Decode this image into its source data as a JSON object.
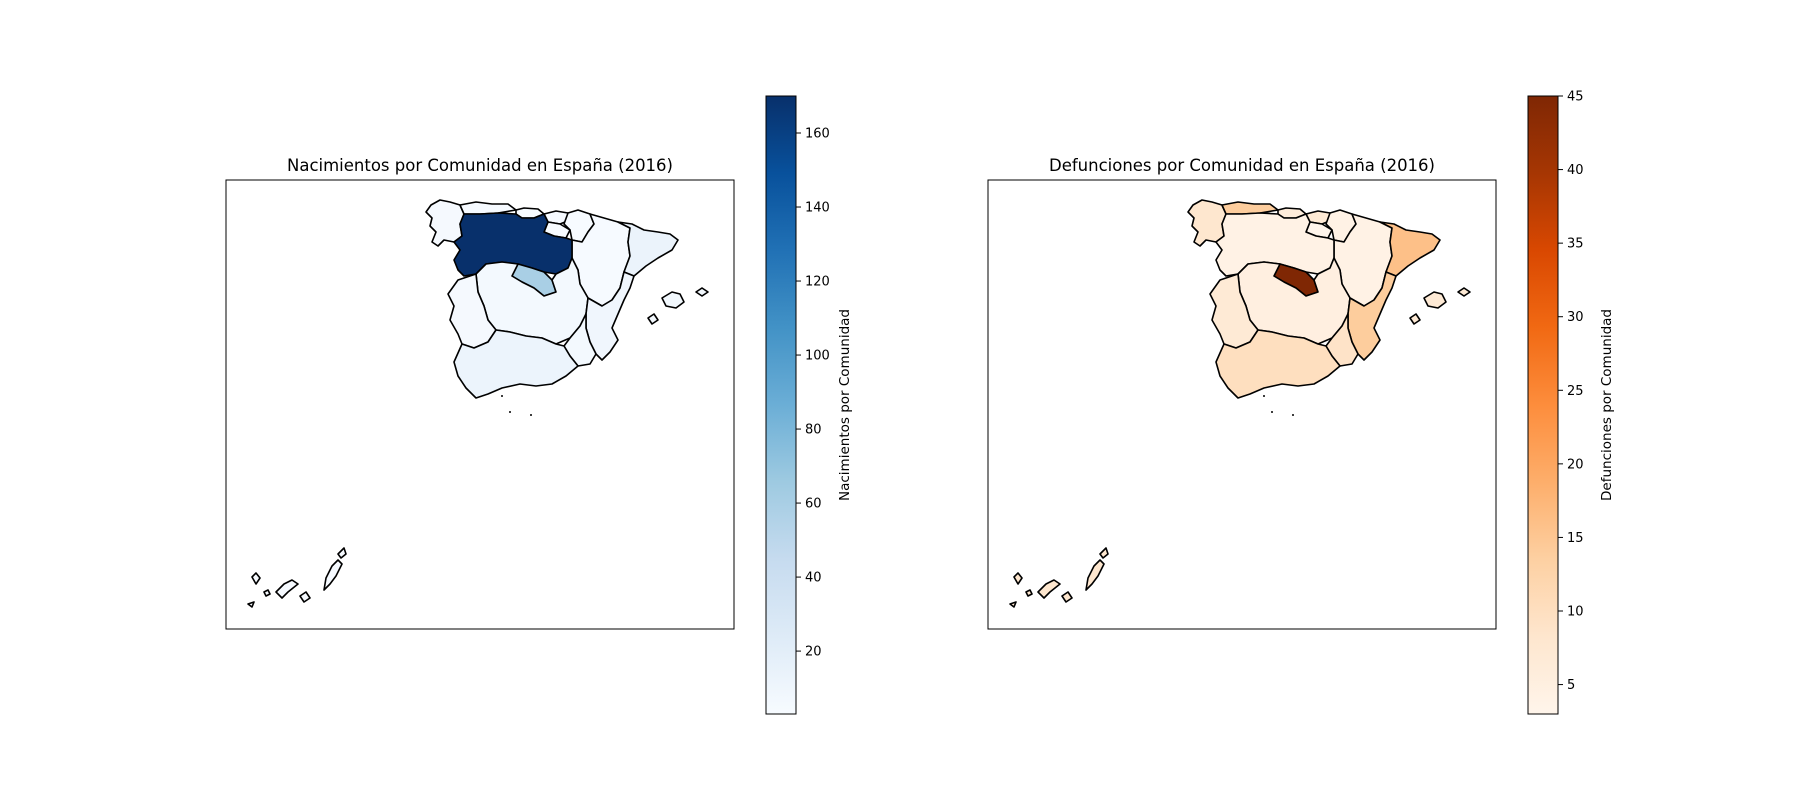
{
  "maps": [
    {
      "title": "Nacimientos por Comunidad en España (2016)",
      "colorbar": {
        "label": "Nacimientos por Comunidad",
        "min": 3,
        "max": 170,
        "ticks": [
          "20",
          "40",
          "60",
          "80",
          "100",
          "120",
          "140",
          "160"
        ],
        "colormap": "Blues",
        "color_low": "#f7fbff",
        "color_high": "#08306b"
      },
      "region_values": {
        "galicia": 5,
        "asturias": 4,
        "cantabria": 3,
        "pais_vasco": 4,
        "navarra": 3,
        "la_rioja": 3,
        "aragon": 4,
        "cataluna": 13,
        "castilla_y_leon": 170,
        "madrid": 60,
        "castilla_la_mancha": 6,
        "extremadura": 5,
        "comunidad_valenciana": 9,
        "murcia": 6,
        "andalucia": 12,
        "baleares": 7,
        "canarias": 4
      }
    },
    {
      "title": "Defunciones por Comunidad en España (2016)",
      "colorbar": {
        "label": "Defunciones por Comunidad",
        "min": 3,
        "max": 45,
        "ticks": [
          "5",
          "10",
          "15",
          "20",
          "25",
          "30",
          "35",
          "40",
          "45"
        ],
        "colormap": "Oranges",
        "color_low": "#fff5eb",
        "color_high": "#7f2704"
      },
      "region_values": {
        "galicia": 8,
        "asturias": 14,
        "cantabria": 6,
        "pais_vasco": 7,
        "navarra": 4,
        "la_rioja": 3,
        "aragon": 4,
        "cataluna": 16,
        "castilla_y_leon": 4,
        "madrid": 45,
        "castilla_la_mancha": 5,
        "extremadura": 7,
        "comunidad_valenciana": 14,
        "murcia": 9,
        "andalucia": 10,
        "baleares": 7,
        "canarias": 8
      }
    }
  ]
}
